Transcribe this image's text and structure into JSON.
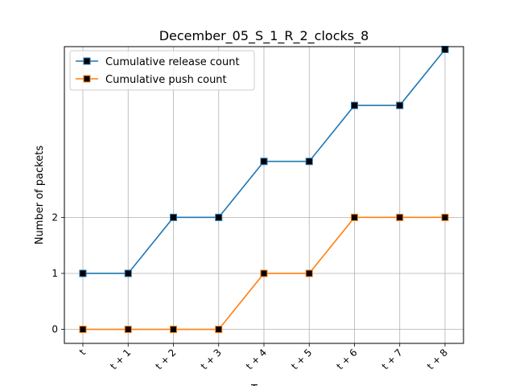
{
  "chart_data": {
    "type": "line",
    "title": "December_05_S_1_R_2_clocks_8",
    "xlabel": "T",
    "ylabel": "Number of packets",
    "categories": [
      "t",
      "t + 1",
      "t + 2",
      "t + 3",
      "t + 4",
      "t + 5",
      "t + 6",
      "t + 7",
      "t + 8"
    ],
    "y_ticks": [
      0,
      1,
      2
    ],
    "ylim": [
      -0.25,
      5.05
    ],
    "grid": true,
    "legend_position": "top-left",
    "series": [
      {
        "name": "Cumulative release count",
        "color": "#1f77b4",
        "values": [
          1,
          1,
          2,
          2,
          3,
          3,
          4,
          4,
          5
        ]
      },
      {
        "name": "Cumulative push count",
        "color": "#ff7f0e",
        "values": [
          0,
          0,
          0,
          0,
          1,
          1,
          2,
          2,
          2
        ]
      }
    ],
    "marker_color": "#000000"
  }
}
